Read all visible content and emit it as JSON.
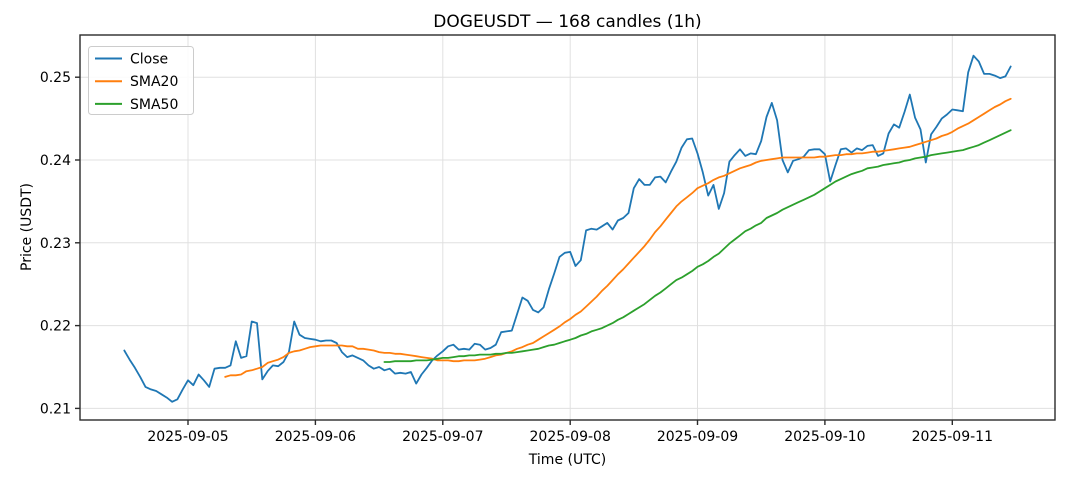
{
  "figure": {
    "title": "DOGEUSDT — 168 candles (1h)",
    "xlabel": "Time (UTC)",
    "ylabel": "Price (USDT)"
  },
  "chart_data": {
    "type": "line",
    "title": "DOGEUSDT — 168 candles (1h)",
    "xlabel": "Time (UTC)",
    "ylabel": "Price (USDT)",
    "grid": true,
    "legend_position": "upper-left",
    "background_color": "#ffffff",
    "grid_color": "#e0e0e0",
    "frame_color": "#2b2b2b",
    "x_tick_labels": [
      "2025-09-05",
      "2025-09-06",
      "2025-09-07",
      "2025-09-08",
      "2025-09-09",
      "2025-09-10",
      "2025-09-11"
    ],
    "x_tick_hours": [
      12,
      36,
      60,
      84,
      108,
      132,
      156
    ],
    "y_ticks": [
      0.21,
      0.22,
      0.23,
      0.24,
      0.25
    ],
    "xlim_hours": [
      -8.35,
      175.35
    ],
    "ylim": [
      0.2086,
      0.2551
    ],
    "candle_interval": "1h",
    "candle_count": 168,
    "series": [
      {
        "name": "Close",
        "color": "#1f77b4",
        "start_hour": 0,
        "values": [
          0.217,
          0.2159,
          0.2149,
          0.2138,
          0.2126,
          0.2123,
          0.2121,
          0.2117,
          0.2113,
          0.2108,
          0.2111,
          0.2123,
          0.2134,
          0.2128,
          0.2141,
          0.2134,
          0.2126,
          0.2148,
          0.2149,
          0.2149,
          0.2152,
          0.2181,
          0.2161,
          0.2163,
          0.2205,
          0.2203,
          0.2135,
          0.2145,
          0.2152,
          0.2151,
          0.2156,
          0.2168,
          0.2205,
          0.2189,
          0.2185,
          0.2184,
          0.2183,
          0.2181,
          0.2182,
          0.2182,
          0.2179,
          0.2168,
          0.2162,
          0.2164,
          0.2161,
          0.2158,
          0.2152,
          0.2148,
          0.215,
          0.2146,
          0.2148,
          0.2142,
          0.2143,
          0.2142,
          0.2144,
          0.213,
          0.2141,
          0.2149,
          0.2158,
          0.2164,
          0.2169,
          0.2175,
          0.2177,
          0.2171,
          0.2172,
          0.2171,
          0.2178,
          0.2177,
          0.2171,
          0.2173,
          0.2177,
          0.2192,
          0.2193,
          0.2194,
          0.2214,
          0.2234,
          0.223,
          0.2219,
          0.2216,
          0.2222,
          0.2244,
          0.2263,
          0.2283,
          0.2288,
          0.2289,
          0.2272,
          0.2279,
          0.2315,
          0.2317,
          0.2316,
          0.232,
          0.2324,
          0.2316,
          0.2327,
          0.233,
          0.2336,
          0.2366,
          0.2377,
          0.237,
          0.237,
          0.2379,
          0.238,
          0.2373,
          0.2386,
          0.2398,
          0.2415,
          0.2425,
          0.2426,
          0.2408,
          0.2385,
          0.2357,
          0.237,
          0.2341,
          0.236,
          0.2398,
          0.2406,
          0.2413,
          0.2405,
          0.2408,
          0.2407,
          0.2423,
          0.2452,
          0.2469,
          0.2448,
          0.24,
          0.2385,
          0.2399,
          0.2401,
          0.2404,
          0.2412,
          0.2413,
          0.2413,
          0.2407,
          0.2374,
          0.2394,
          0.2413,
          0.2414,
          0.2409,
          0.2414,
          0.2412,
          0.2417,
          0.2418,
          0.2405,
          0.2408,
          0.2432,
          0.2443,
          0.2439,
          0.2458,
          0.2479,
          0.2451,
          0.2437,
          0.2397,
          0.2431,
          0.244,
          0.245,
          0.2455,
          0.2461,
          0.246,
          0.2459,
          0.2506,
          0.2526,
          0.2519,
          0.2504,
          0.2504,
          0.2502,
          0.2499,
          0.2501,
          0.2513
        ]
      },
      {
        "name": "SMA20",
        "color": "#ff7f0e",
        "start_hour": 19,
        "values": [
          0.2138,
          0.214,
          0.214,
          0.2141,
          0.2145,
          0.2146,
          0.2148,
          0.215,
          0.2155,
          0.2157,
          0.2159,
          0.2162,
          0.2167,
          0.2169,
          0.217,
          0.2172,
          0.2174,
          0.2175,
          0.2176,
          0.2176,
          0.2176,
          0.2176,
          0.2176,
          0.2175,
          0.2175,
          0.2172,
          0.2172,
          0.2171,
          0.217,
          0.2168,
          0.2167,
          0.2167,
          0.2166,
          0.2166,
          0.2165,
          0.2164,
          0.2163,
          0.2162,
          0.2161,
          0.216,
          0.2158,
          0.2158,
          0.2158,
          0.2157,
          0.2157,
          0.2158,
          0.2158,
          0.2158,
          0.2159,
          0.216,
          0.2162,
          0.2164,
          0.2165,
          0.2167,
          0.2169,
          0.2172,
          0.2174,
          0.2177,
          0.2179,
          0.2183,
          0.2187,
          0.2191,
          0.2195,
          0.2199,
          0.2204,
          0.2208,
          0.2213,
          0.2217,
          0.2223,
          0.2229,
          0.2235,
          0.2242,
          0.2248,
          0.2255,
          0.2262,
          0.2268,
          0.2275,
          0.2282,
          0.2289,
          0.2296,
          0.2304,
          0.2313,
          0.232,
          0.2328,
          0.2336,
          0.2344,
          0.235,
          0.2355,
          0.236,
          0.2366,
          0.2369,
          0.2372,
          0.2376,
          0.2379,
          0.2381,
          0.2384,
          0.2387,
          0.239,
          0.2392,
          0.2394,
          0.2397,
          0.2399,
          0.24,
          0.2401,
          0.2402,
          0.2403,
          0.2403,
          0.2403,
          0.2403,
          0.2403,
          0.2403,
          0.2403,
          0.2404,
          0.2404,
          0.2405,
          0.2406,
          0.2406,
          0.2407,
          0.2407,
          0.2408,
          0.2408,
          0.2409,
          0.241,
          0.241,
          0.2411,
          0.2412,
          0.2413,
          0.2414,
          0.2415,
          0.2416,
          0.2418,
          0.242,
          0.2422,
          0.2424,
          0.2426,
          0.2429,
          0.2431,
          0.2434,
          0.2438,
          0.2441,
          0.2444,
          0.2448,
          0.2452,
          0.2456,
          0.246,
          0.2464,
          0.2467,
          0.2471,
          0.2474
        ]
      },
      {
        "name": "SMA50",
        "color": "#2ca02c",
        "start_hour": 49,
        "values": [
          0.2156,
          0.2156,
          0.2157,
          0.2157,
          0.2157,
          0.2157,
          0.2158,
          0.2158,
          0.2158,
          0.2159,
          0.216,
          0.2161,
          0.2161,
          0.2162,
          0.2163,
          0.2163,
          0.2164,
          0.2164,
          0.2165,
          0.2165,
          0.2165,
          0.2166,
          0.2166,
          0.2167,
          0.2167,
          0.2168,
          0.2169,
          0.217,
          0.2171,
          0.2172,
          0.2174,
          0.2176,
          0.2177,
          0.2179,
          0.2181,
          0.2183,
          0.2185,
          0.2188,
          0.219,
          0.2193,
          0.2195,
          0.2197,
          0.22,
          0.2203,
          0.2207,
          0.221,
          0.2214,
          0.2218,
          0.2222,
          0.2226,
          0.2231,
          0.2236,
          0.224,
          0.2245,
          0.225,
          0.2255,
          0.2258,
          0.2262,
          0.2266,
          0.2271,
          0.2274,
          0.2278,
          0.2283,
          0.2287,
          0.2293,
          0.2299,
          0.2304,
          0.2309,
          0.2314,
          0.2317,
          0.2321,
          0.2324,
          0.233,
          0.2333,
          0.2336,
          0.234,
          0.2343,
          0.2346,
          0.2349,
          0.2352,
          0.2355,
          0.2358,
          0.2362,
          0.2366,
          0.237,
          0.2374,
          0.2377,
          0.238,
          0.2383,
          0.2385,
          0.2387,
          0.239,
          0.2391,
          0.2392,
          0.2394,
          0.2395,
          0.2396,
          0.2397,
          0.2399,
          0.24,
          0.2402,
          0.2403,
          0.2404,
          0.2406,
          0.2407,
          0.2408,
          0.2409,
          0.241,
          0.2411,
          0.2412,
          0.2414,
          0.2416,
          0.2418,
          0.2421,
          0.2424,
          0.2427,
          0.243,
          0.2433,
          0.2436
        ]
      }
    ]
  }
}
